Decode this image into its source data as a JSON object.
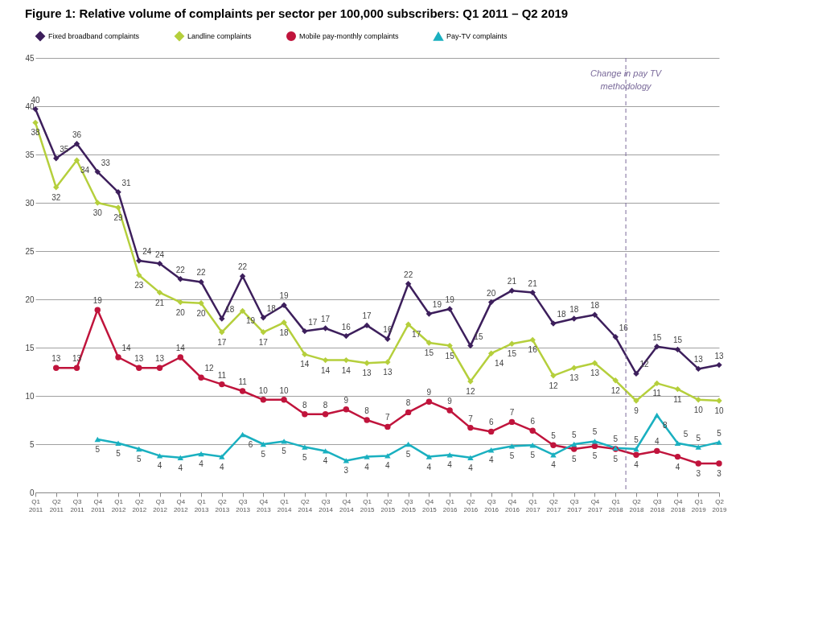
{
  "chart_data": {
    "type": "line",
    "title": "Figure 1: Relative volume of complaints per sector per 100,000 subscribers: Q1 2011 – Q2 2019",
    "categories": [
      "Q1 2011",
      "Q2 2011",
      "Q3 2011",
      "Q4 2011",
      "Q1 2012",
      "Q2 2012",
      "Q3 2012",
      "Q4 2012",
      "Q1 2013",
      "Q2 2013",
      "Q3 2013",
      "Q4 2013",
      "Q1 2014",
      "Q2 2014",
      "Q3 2014",
      "Q4 2014",
      "Q1 2015",
      "Q2 2015",
      "Q3 2015",
      "Q4 2015",
      "Q1 2016",
      "Q2 2016",
      "Q3 2016",
      "Q4 2016",
      "Q1 2017",
      "Q2 2017",
      "Q3 2017",
      "Q4 2017",
      "Q1 2018",
      "Q2 2018",
      "Q3 2018",
      "Q4 2018",
      "Q1 2019",
      "Q2 2019"
    ],
    "series": [
      {
        "name": "Fixed broadband complaints",
        "color": "#3d1f5c",
        "marker": "diamond",
        "values": [
          39.7,
          34.6,
          36.1,
          33.2,
          31.1,
          24.0,
          23.7,
          22.1,
          21.8,
          18.0,
          22.4,
          18.1,
          19.4,
          16.7,
          17.0,
          16.2,
          17.3,
          15.9,
          21.6,
          18.5,
          19.0,
          15.2,
          19.7,
          20.9,
          20.7,
          17.5,
          18.0,
          18.4,
          16.1,
          12.3,
          15.1,
          14.8,
          12.8,
          13.2
        ],
        "value_labels": [
          "40",
          "35",
          "36",
          "33",
          "31",
          "24",
          "24",
          "22",
          "22",
          "18",
          "22",
          "18",
          "19",
          "17",
          "17",
          "16",
          "17",
          "16",
          "22",
          "19",
          "19",
          "15",
          "20",
          "21",
          "21",
          "18",
          "18",
          "18",
          "16",
          "12",
          "15",
          "15",
          "13",
          "13"
        ]
      },
      {
        "name": "Landline complaints",
        "color": "#b5cf3c",
        "marker": "diamond",
        "values": [
          38.3,
          31.6,
          34.4,
          30.0,
          29.5,
          22.5,
          20.7,
          19.7,
          19.6,
          16.6,
          18.8,
          16.6,
          17.6,
          14.3,
          13.7,
          13.7,
          13.4,
          13.5,
          17.4,
          15.5,
          15.2,
          11.5,
          14.4,
          15.4,
          15.8,
          12.1,
          12.9,
          13.4,
          11.6,
          9.5,
          11.3,
          10.7,
          9.6,
          9.5
        ],
        "value_labels": [
          "38",
          "32",
          "34",
          "30",
          "29",
          "23",
          "21",
          "20",
          "20",
          "17",
          "19",
          "17",
          "18",
          "14",
          "14",
          "14",
          "13",
          "13",
          "17",
          "15",
          "15",
          "12",
          "14",
          "15",
          "16",
          "12",
          "13",
          "13",
          "12",
          "9",
          "11",
          "11",
          "10",
          "10"
        ]
      },
      {
        "name": "Mobile pay-monthly complaints",
        "color": "#c0143c",
        "marker": "circle",
        "values": [
          null,
          12.9,
          12.9,
          18.9,
          14.0,
          12.9,
          12.9,
          14.0,
          11.9,
          11.2,
          10.5,
          9.6,
          9.6,
          8.1,
          8.1,
          8.6,
          7.5,
          6.8,
          8.3,
          9.4,
          8.5,
          6.7,
          6.3,
          7.3,
          6.4,
          4.9,
          4.5,
          4.8,
          4.5,
          3.9,
          4.3,
          3.7,
          3.0,
          3.0
        ],
        "value_labels": [
          null,
          "13",
          "13",
          "19",
          "14",
          "13",
          "13",
          "14",
          "12",
          "11",
          "11",
          "10",
          "10",
          "8",
          "8",
          "9",
          "8",
          "7",
          "8",
          "9",
          "9",
          "7",
          "6",
          "7",
          "6",
          "5",
          "5",
          "5",
          "5",
          "4",
          "4",
          "4",
          "3",
          "3"
        ]
      },
      {
        "name": "Pay-TV complaints",
        "color": "#1ab0c0",
        "marker": "triangle",
        "values": [
          null,
          null,
          null,
          5.5,
          5.1,
          4.5,
          3.8,
          3.6,
          4.0,
          3.7,
          6.0,
          5.0,
          5.3,
          4.7,
          4.3,
          3.3,
          3.7,
          3.8,
          5.0,
          3.7,
          3.9,
          3.6,
          4.4,
          4.8,
          4.9,
          3.9,
          5.0,
          5.3,
          4.6,
          4.5,
          8.0,
          5.1,
          4.7,
          5.2
        ],
        "value_labels": [
          null,
          null,
          null,
          "5",
          "5",
          "5",
          "4",
          "4",
          "4",
          "4",
          "6",
          "5",
          "5",
          "5",
          "4",
          "3",
          "4",
          "4",
          "5",
          "4",
          "4",
          "4",
          "4",
          "5",
          "5",
          "4",
          "5",
          "5",
          "5",
          "5",
          "8",
          "5",
          "5",
          "5"
        ]
      }
    ],
    "ylim": [
      0,
      45
    ],
    "yticks": [
      0,
      5,
      10,
      15,
      20,
      25,
      30,
      35,
      40,
      45
    ],
    "grid": "y",
    "legend": "top",
    "ref_lines": [
      {
        "axis": "x",
        "value": "Q2 2018",
        "label": "Change in pay TV methodology",
        "color": "#7a6a9a",
        "line_style": "dashed"
      }
    ]
  }
}
